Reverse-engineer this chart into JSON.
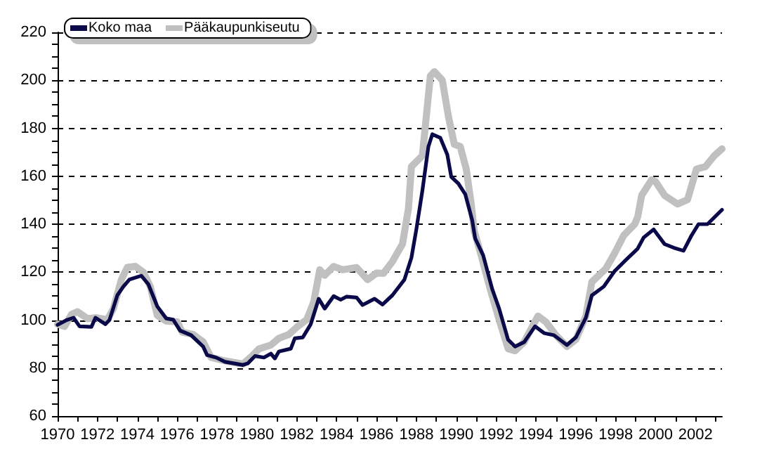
{
  "chart_data": {
    "type": "line",
    "xlim": [
      1970,
      2003.33
    ],
    "xticks": [
      1970,
      {
        "value": 1971,
        "label": null
      },
      1972,
      {
        "value": 1973,
        "label": null
      },
      1974,
      {
        "value": 1975,
        "label": null
      },
      1976,
      {
        "value": 1977,
        "label": null
      },
      1978,
      {
        "value": 1979,
        "label": null
      },
      1980,
      {
        "value": 1981,
        "label": null
      },
      1982,
      {
        "value": 1983,
        "label": null
      },
      1984,
      {
        "value": 1985,
        "label": null
      },
      1986,
      {
        "value": 1987,
        "label": null
      },
      1988,
      {
        "value": 1989,
        "label": null
      },
      1990,
      {
        "value": 1991,
        "label": null
      },
      1992,
      {
        "value": 1993,
        "label": null
      },
      1994,
      {
        "value": 1995,
        "label": null
      },
      1996,
      {
        "value": 1997,
        "label": null
      },
      1998,
      {
        "value": 1999,
        "label": null
      },
      2000,
      {
        "value": 2001,
        "label": null
      },
      2002,
      {
        "value": 2003,
        "label": null
      }
    ],
    "ylim": [
      60,
      220
    ],
    "yticks": [
      60,
      {
        "value": 65,
        "label": null
      },
      {
        "value": 70,
        "label": null
      },
      {
        "value": 75,
        "label": null
      },
      80,
      {
        "value": 85,
        "label": null
      },
      {
        "value": 90,
        "label": null
      },
      {
        "value": 95,
        "label": null
      },
      100,
      {
        "value": 105,
        "label": null
      },
      {
        "value": 110,
        "label": null
      },
      {
        "value": 115,
        "label": null
      },
      120,
      {
        "value": 125,
        "label": null
      },
      {
        "value": 130,
        "label": null
      },
      {
        "value": 135,
        "label": null
      },
      140,
      {
        "value": 145,
        "label": null
      },
      {
        "value": 150,
        "label": null
      },
      {
        "value": 155,
        "label": null
      },
      160,
      {
        "value": 165,
        "label": null
      },
      {
        "value": 170,
        "label": null
      },
      {
        "value": 175,
        "label": null
      },
      180,
      {
        "value": 185,
        "label": null
      },
      {
        "value": 190,
        "label": null
      },
      {
        "value": 195,
        "label": null
      },
      200,
      {
        "value": 205,
        "label": null
      },
      {
        "value": 210,
        "label": null
      },
      {
        "value": 215,
        "label": null
      },
      220
    ],
    "grid": "y",
    "legend": "top left",
    "marker": "none",
    "line_style": "solid",
    "series": [
      {
        "name": "Koko maa",
        "color": "#0a0a4a",
        "x": [
          1970,
          1970.45,
          1970.8,
          1971.1,
          1971.7,
          1971.9,
          1972.4,
          1972.6,
          1973.0,
          1973.3,
          1973.6,
          1974.2,
          1974.55,
          1975.0,
          1975.45,
          1975.8,
          1976.15,
          1976.7,
          1977.3,
          1977.5,
          1977.95,
          1978.4,
          1979.3,
          1979.55,
          1979.9,
          1980.35,
          1980.7,
          1980.9,
          1981.1,
          1981.7,
          1981.9,
          1982.3,
          1982.7,
          1983.1,
          1983.4,
          1983.85,
          1984.2,
          1984.5,
          1985.0,
          1985.3,
          1985.9,
          1986.3,
          1986.8,
          1987.4,
          1987.75,
          1988.0,
          1988.3,
          1988.6,
          1988.8,
          1989.2,
          1989.55,
          1989.75,
          1990.1,
          1990.45,
          1990.8,
          1990.95,
          1991.35,
          1991.8,
          1992.15,
          1992.6,
          1992.95,
          1993.4,
          1993.95,
          1994.4,
          1994.9,
          1995.55,
          1996.0,
          1996.5,
          1996.8,
          1997.4,
          1997.95,
          1998.5,
          1999.1,
          1999.4,
          1999.9,
          2000.45,
          2000.9,
          2001.4,
          2001.8,
          2002.15,
          2002.6,
          2003.33
        ],
        "values": [
          98,
          100,
          101,
          97.4,
          97.2,
          101,
          98.3,
          100,
          110.4,
          114,
          116.9,
          118.5,
          115,
          105.7,
          100.7,
          100.2,
          95.6,
          93.7,
          89,
          85.4,
          84.4,
          82.6,
          81.3,
          82,
          85,
          84.4,
          86,
          84,
          86.9,
          88.1,
          92.4,
          92.8,
          98.3,
          108.9,
          104.8,
          110,
          108.5,
          109.8,
          109.4,
          106.3,
          108.9,
          106.5,
          110.4,
          116.9,
          126,
          138,
          154,
          172.3,
          177.5,
          176,
          169,
          159.7,
          157,
          152.5,
          141.6,
          134,
          127,
          113,
          104.8,
          91.8,
          89,
          90.8,
          97.4,
          94.6,
          93.7,
          89.6,
          92.8,
          101,
          110.3,
          114,
          120.5,
          125,
          129.8,
          134.4,
          137.8,
          131.7,
          130.2,
          128.9,
          135.3,
          140,
          140,
          146
        ]
      },
      {
        "name": "Pääkaupunkiseutu",
        "color": "#c0c0c0",
        "x": [
          1970,
          1970.35,
          1970.7,
          1971.0,
          1971.5,
          1971.95,
          1972.5,
          1972.8,
          1973.2,
          1973.5,
          1973.9,
          1974.3,
          1974.65,
          1975.0,
          1975.45,
          1976.0,
          1976.25,
          1976.8,
          1977.3,
          1977.7,
          1978.4,
          1979.3,
          1979.75,
          1980.1,
          1980.7,
          1981.1,
          1981.6,
          1982.05,
          1982.5,
          1982.85,
          1983.15,
          1983.4,
          1983.85,
          1984.3,
          1985.0,
          1985.55,
          1986.0,
          1986.35,
          1986.8,
          1987.3,
          1987.6,
          1987.75,
          1988.3,
          1988.5,
          1988.7,
          1988.9,
          1989.3,
          1989.6,
          1989.9,
          1990.2,
          1990.5,
          1990.75,
          1990.9,
          1991.25,
          1991.7,
          1992.15,
          1992.6,
          1992.95,
          1993.4,
          1994.1,
          1994.5,
          1995.0,
          1995.55,
          1996.0,
          1996.5,
          1996.8,
          1997.5,
          1997.95,
          1998.4,
          1998.95,
          1999.1,
          1999.3,
          1999.8,
          2000.0,
          2000.45,
          2001.1,
          2001.6,
          2002.05,
          2002.5,
          2002.95,
          2003.33
        ],
        "values": [
          98.3,
          97.4,
          102.4,
          103.5,
          100.6,
          101,
          100.2,
          104.8,
          116.9,
          122,
          122.4,
          120,
          114,
          102,
          99.6,
          99.3,
          95,
          94,
          91,
          84.4,
          83,
          81.7,
          85,
          88,
          89.6,
          92.4,
          94,
          97.4,
          100.2,
          107.6,
          121,
          118.7,
          122.4,
          121,
          121.9,
          116.9,
          119.6,
          119.5,
          124.5,
          131.7,
          146.5,
          164,
          168.6,
          185.2,
          201.8,
          203.6,
          200,
          185.2,
          173.3,
          172.4,
          163,
          148.4,
          137.2,
          127,
          113,
          100.2,
          88.1,
          87.2,
          90.8,
          101.7,
          99.2,
          93.7,
          89,
          91.9,
          101.6,
          115.9,
          121.4,
          128,
          135.3,
          140,
          143,
          152,
          158.5,
          157.7,
          152,
          148.4,
          150.2,
          163,
          164,
          168.6,
          171.4
        ]
      }
    ]
  }
}
